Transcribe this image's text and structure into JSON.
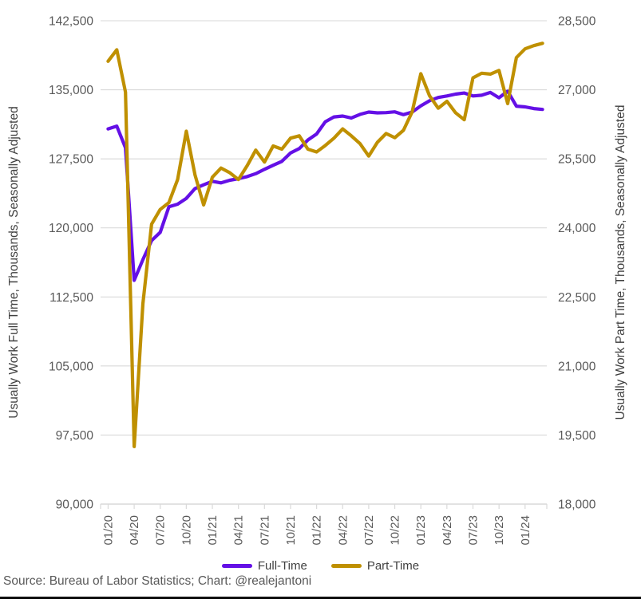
{
  "chart_data": {
    "type": "line",
    "categories": [
      "01/20",
      "02/20",
      "03/20",
      "04/20",
      "05/20",
      "06/20",
      "07/20",
      "08/20",
      "09/20",
      "10/20",
      "11/20",
      "12/20",
      "01/21",
      "02/21",
      "03/21",
      "04/21",
      "05/21",
      "06/21",
      "07/21",
      "08/21",
      "09/21",
      "10/21",
      "11/21",
      "12/21",
      "01/22",
      "02/22",
      "03/22",
      "04/22",
      "05/22",
      "06/22",
      "07/22",
      "08/22",
      "09/22",
      "10/22",
      "11/22",
      "12/22",
      "01/23",
      "02/23",
      "03/23",
      "04/23",
      "05/23",
      "06/23",
      "07/23",
      "08/23",
      "09/23",
      "10/23",
      "11/23",
      "12/23",
      "01/24",
      "02/24",
      "03/24"
    ],
    "x_tick_interval": 3,
    "x_tick_labels": [
      "01/20",
      "04/20",
      "07/20",
      "10/20",
      "01/21",
      "04/21",
      "07/21",
      "10/21",
      "01/22",
      "04/22",
      "07/22",
      "10/22",
      "01/23",
      "04/23",
      "07/23",
      "10/23",
      "01/24"
    ],
    "series": [
      {
        "name": "Full-Time",
        "axis": "left",
        "color": "#6410e6",
        "values": [
          130750,
          131060,
          128700,
          114300,
          116550,
          118620,
          119520,
          122290,
          122570,
          123210,
          124270,
          124680,
          125060,
          124890,
          125170,
          125350,
          125570,
          125890,
          126360,
          126800,
          127230,
          128140,
          128610,
          129550,
          130200,
          131520,
          132050,
          132150,
          131940,
          132330,
          132580,
          132490,
          132520,
          132610,
          132300,
          132580,
          133260,
          133810,
          134170,
          134330,
          134530,
          134650,
          134330,
          134410,
          134710,
          134130,
          134850,
          133220,
          133140,
          132960,
          132870
        ]
      },
      {
        "name": "Part-Time",
        "axis": "right",
        "color": "#bf9000",
        "values": [
          27620,
          27870,
          26950,
          19250,
          22350,
          24080,
          24400,
          24550,
          25050,
          26100,
          25150,
          24500,
          25100,
          25300,
          25200,
          25050,
          25350,
          25690,
          25430,
          25780,
          25710,
          25950,
          26000,
          25710,
          25650,
          25790,
          25950,
          26150,
          26000,
          25830,
          25560,
          25860,
          26050,
          25960,
          26120,
          26520,
          27350,
          26870,
          26600,
          26750,
          26500,
          26350,
          27260,
          27360,
          27340,
          27420,
          26700,
          27700,
          27890,
          27960,
          28010
        ]
      }
    ],
    "left_axis": {
      "title": "Usually Work Full Time, Thousands, Seasonally Adjusted",
      "min": 90000,
      "max": 142500,
      "step": 7500,
      "tick_labels": [
        "90,000",
        "97,500",
        "105,000",
        "112,500",
        "120,000",
        "127,500",
        "135,000",
        "142,500"
      ]
    },
    "right_axis": {
      "title": "Usually Work Part Time, Thousands, Seasonally Adjusted",
      "min": 18000,
      "max": 28500,
      "step": 1500,
      "tick_labels": [
        "18,000",
        "19,500",
        "21,000",
        "22,500",
        "24,000",
        "25,500",
        "27,000",
        "28,500"
      ]
    },
    "grid": true,
    "legend_position": "bottom",
    "colors": {
      "gridline": "#d9d9d9",
      "axis_line": "#d9d9d9",
      "tick_text": "#595959",
      "axis_title_text": "#404040"
    }
  },
  "legend": {
    "items": [
      {
        "label": "Full-Time"
      },
      {
        "label": "Part-Time"
      }
    ]
  },
  "footer": {
    "source": "Source: Bureau of Labor Statistics; Chart: @realejantoni"
  }
}
